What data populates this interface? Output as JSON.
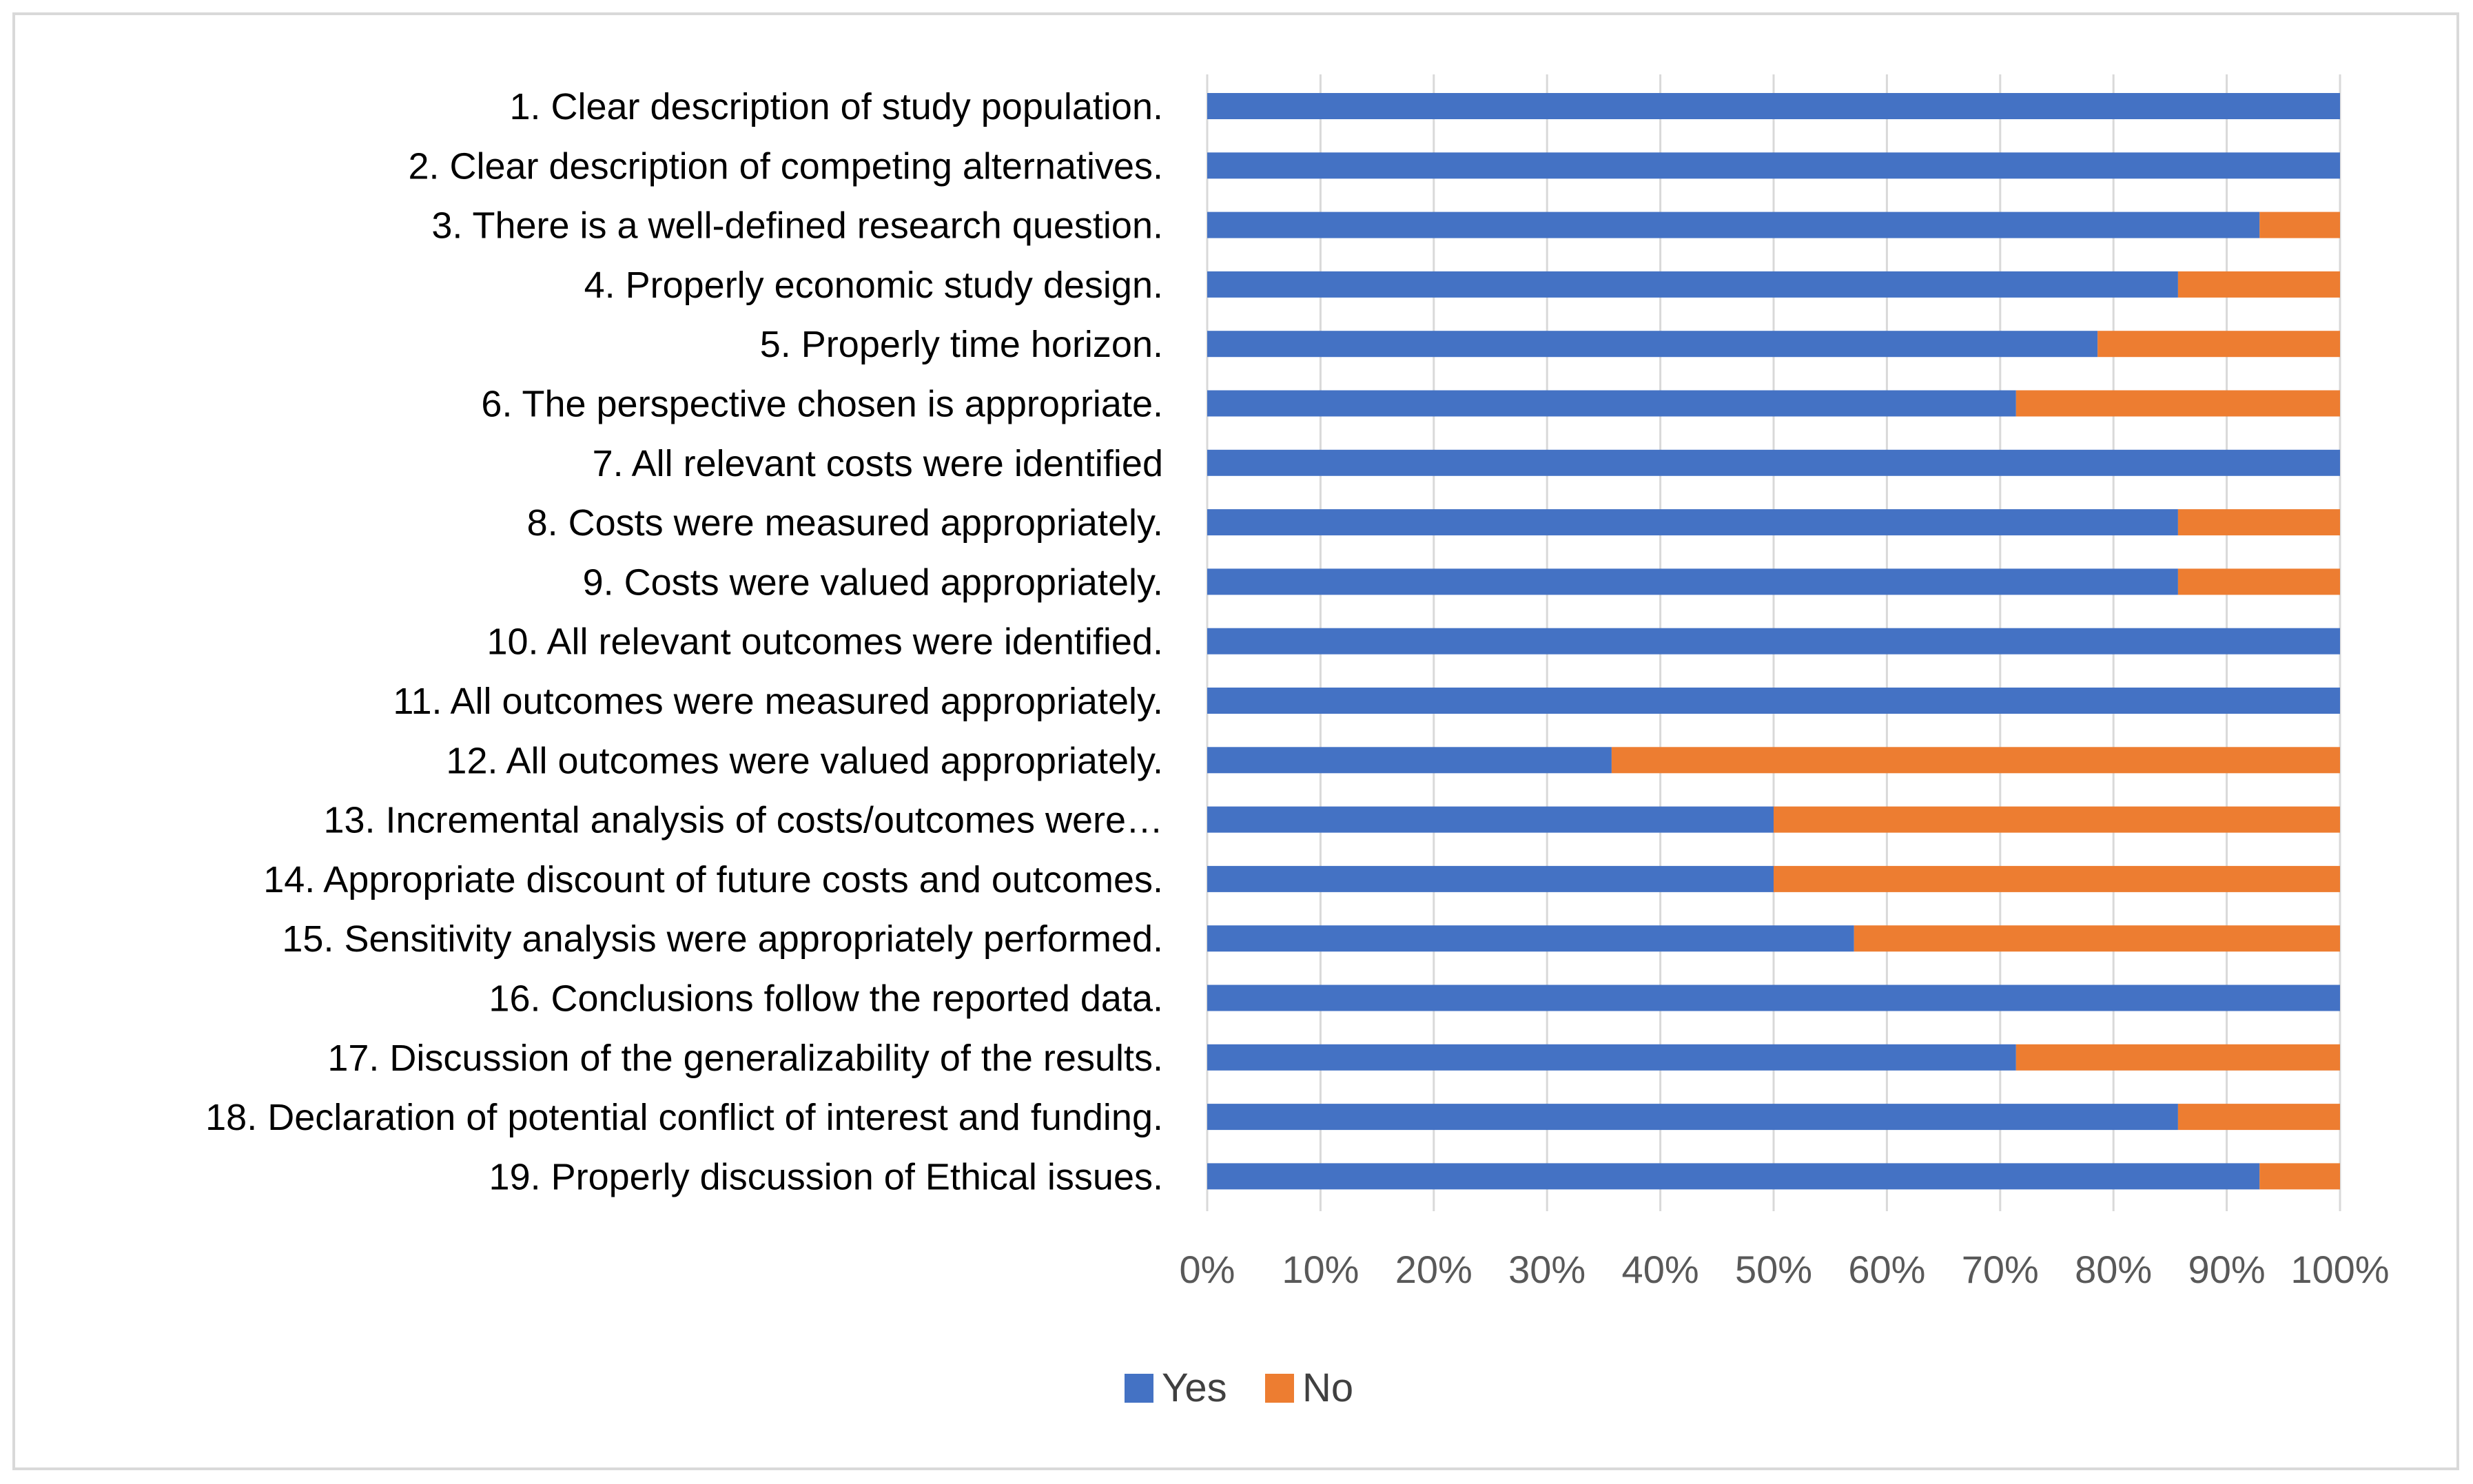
{
  "chart_data": {
    "type": "bar",
    "orientation": "horizontal",
    "stacked": "percent",
    "title": "",
    "xlabel": "",
    "ylabel": "",
    "xlim": [
      0,
      100
    ],
    "grid": true,
    "legend_position": "bottom",
    "categories": [
      "1. Clear description of study population.",
      "2. Clear description of competing alternatives.",
      "3. There is a well-defined research question.",
      "4. Properly economic study design.",
      "5. Properly time horizon.",
      "6. The perspective chosen is appropriate.",
      "7. All relevant costs were identified",
      "8. Costs were measured appropriately.",
      "9. Costs were valued appropriately.",
      "10. All relevant outcomes were identified.",
      "11. All outcomes were measured appropriately.",
      "12. All outcomes were valued appropriately.",
      "13. Incremental analysis of costs/outcomes were…",
      "14. Appropriate discount of future costs and outcomes.",
      "15. Sensitivity analysis were appropriately performed.",
      "16. Conclusions follow the reported data.",
      "17. Discussion of the generalizability of the results.",
      "18. Declaration of potential conflict of interest and funding.",
      "19. Properly discussion of Ethical issues."
    ],
    "series": [
      {
        "name": "Yes",
        "color": "#4472C4",
        "values": [
          100,
          100,
          92.9,
          85.7,
          78.6,
          71.4,
          100,
          85.7,
          85.7,
          100,
          100,
          35.7,
          50,
          50,
          57.1,
          100,
          71.4,
          85.7,
          92.9
        ]
      },
      {
        "name": "No",
        "color": "#ED7D31",
        "values": [
          0,
          0,
          7.1,
          14.3,
          21.4,
          28.6,
          0,
          14.3,
          14.3,
          0,
          0,
          64.3,
          50,
          50,
          42.9,
          0,
          28.6,
          14.3,
          7.1
        ]
      }
    ],
    "x_ticks": [
      "0%",
      "10%",
      "20%",
      "30%",
      "40%",
      "50%",
      "60%",
      "70%",
      "80%",
      "90%",
      "100%"
    ],
    "colors": {
      "grid": "#d9d9d9",
      "tick_text": "#595959",
      "label_text": "#000000",
      "frame": "#d9d9d9"
    }
  }
}
